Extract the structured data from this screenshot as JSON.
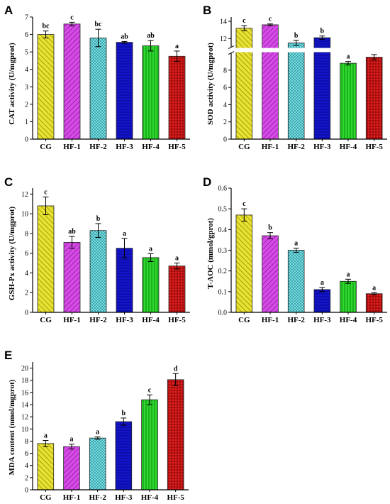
{
  "colors": {
    "CG": "#d4cc1c",
    "HF-1": "#c62cd8",
    "HF-2": "#5fd6dc",
    "HF-3": "#1010c8",
    "HF-4": "#22cc22",
    "HF-5": "#d81818"
  },
  "chart_data": [
    {
      "type": "bar",
      "panel": "A",
      "categories": [
        "CG",
        "HF-1",
        "HF-2",
        "HF-3",
        "HF-4",
        "HF-5"
      ],
      "values": [
        6.0,
        6.6,
        5.8,
        5.55,
        5.35,
        4.75
      ],
      "errors": [
        0.2,
        0.1,
        0.5,
        0.05,
        0.3,
        0.3
      ],
      "labels": [
        "bc",
        "c",
        "bc",
        "ab",
        "ab",
        "a"
      ],
      "ylabel": "CAT activity (U/mgprot)",
      "ylim": [
        0,
        7
      ],
      "yticks": [
        "0",
        "1",
        "2",
        "3",
        "4",
        "5",
        "6",
        "7"
      ]
    },
    {
      "type": "bar",
      "panel": "B",
      "categories": [
        "CG",
        "HF-1",
        "HF-2",
        "HF-3",
        "HF-4",
        "HF-5"
      ],
      "values": [
        13.2,
        13.6,
        11.5,
        12.1,
        8.8,
        9.5
      ],
      "errors": [
        0.3,
        0.1,
        0.3,
        0.2,
        0.2,
        0.3
      ],
      "labels": [
        "c",
        "c",
        "b",
        "b",
        "a",
        "a"
      ],
      "ylabel": "SOD activity (U/mgprot)",
      "ylim": [
        0,
        14.5
      ],
      "axis_break": [
        10,
        11
      ],
      "yticks": [
        "0",
        "2",
        "4",
        "6",
        "8",
        "12",
        "14"
      ]
    },
    {
      "type": "bar",
      "panel": "C",
      "categories": [
        "CG",
        "HF-1",
        "HF-2",
        "HF-3",
        "HF-4",
        "HF-5"
      ],
      "values": [
        10.8,
        7.1,
        8.3,
        6.5,
        5.55,
        4.7
      ],
      "errors": [
        0.9,
        0.6,
        0.7,
        1.0,
        0.4,
        0.3
      ],
      "labels": [
        "c",
        "ab",
        "b",
        "a",
        "a",
        "a"
      ],
      "ylabel": "GSH-Px activity (U/mgprot)",
      "ylim": [
        0,
        12.6
      ],
      "yticks": [
        "0",
        "2",
        "4",
        "6",
        "8",
        "10",
        "12"
      ]
    },
    {
      "type": "bar",
      "panel": "D",
      "categories": [
        "CG",
        "HF-1",
        "HF-2",
        "HF-3",
        "HF-4",
        "HF-5"
      ],
      "values": [
        0.47,
        0.37,
        0.3,
        0.11,
        0.15,
        0.09
      ],
      "errors": [
        0.03,
        0.015,
        0.01,
        0.01,
        0.01,
        0.005
      ],
      "labels": [
        "c",
        "b",
        "a",
        "a",
        "a",
        "a"
      ],
      "ylabel": "T-AOC (mmol/gprot)",
      "ylim": [
        0,
        0.6
      ],
      "yticks": [
        "0.0",
        "0.1",
        "0.2",
        "0.3",
        "0.4",
        "0.5",
        "0.6"
      ]
    },
    {
      "type": "bar",
      "panel": "E",
      "categories": [
        "CG",
        "HF-1",
        "HF-2",
        "HF-3",
        "HF-4",
        "HF-5"
      ],
      "values": [
        7.6,
        7.1,
        8.5,
        11.2,
        14.8,
        18.1
      ],
      "errors": [
        0.5,
        0.4,
        0.2,
        0.6,
        0.8,
        1.0
      ],
      "labels": [
        "a",
        "a",
        "a",
        "b",
        "c",
        "d"
      ],
      "ylabel": "MDA content (nmol/mgprot)",
      "ylim": [
        0,
        21
      ],
      "yticks": [
        "0",
        "2",
        "4",
        "6",
        "8",
        "10",
        "12",
        "14",
        "16",
        "18",
        "20"
      ]
    }
  ]
}
